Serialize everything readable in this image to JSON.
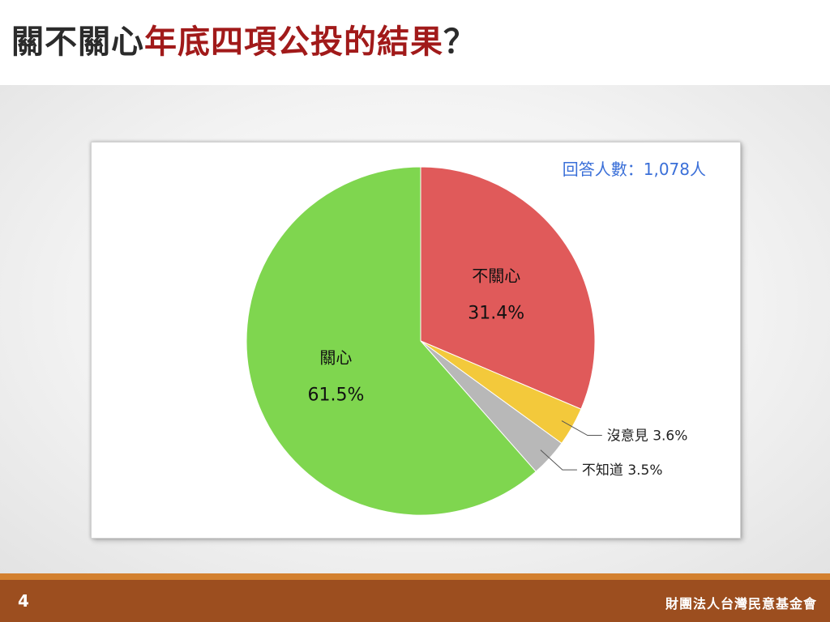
{
  "slide": {
    "title_part1": "關不關心",
    "title_part2": "年底四項公投的結果",
    "title_part3": "？",
    "page_number": "4",
    "organization": "財團法人台灣民意基金會"
  },
  "chart_data": {
    "type": "pie",
    "title": "",
    "annotation": "回答人數：1,078人",
    "start_angle_deg": 0,
    "direction": "clockwise",
    "slices": [
      {
        "name": "不關心",
        "value": 31.4,
        "label": "31.4%",
        "color": "#e05a5a",
        "label_position": "inside"
      },
      {
        "name": "沒意見",
        "value": 3.6,
        "label": "3.6%",
        "color": "#f3c93b",
        "label_position": "outside"
      },
      {
        "name": "不知道",
        "value": 3.5,
        "label": "3.5%",
        "color": "#b8b8b8",
        "label_position": "outside"
      },
      {
        "name": "關心",
        "value": 61.5,
        "label": "61.5%",
        "color": "#7fd64f",
        "label_position": "inside"
      }
    ]
  },
  "colors": {
    "title_dark": "#2b2b2b",
    "title_accent": "#a11a1a",
    "annotation": "#3a6fd8",
    "footer": "#9c4e1f",
    "footer_stripe": "#d3802f"
  }
}
